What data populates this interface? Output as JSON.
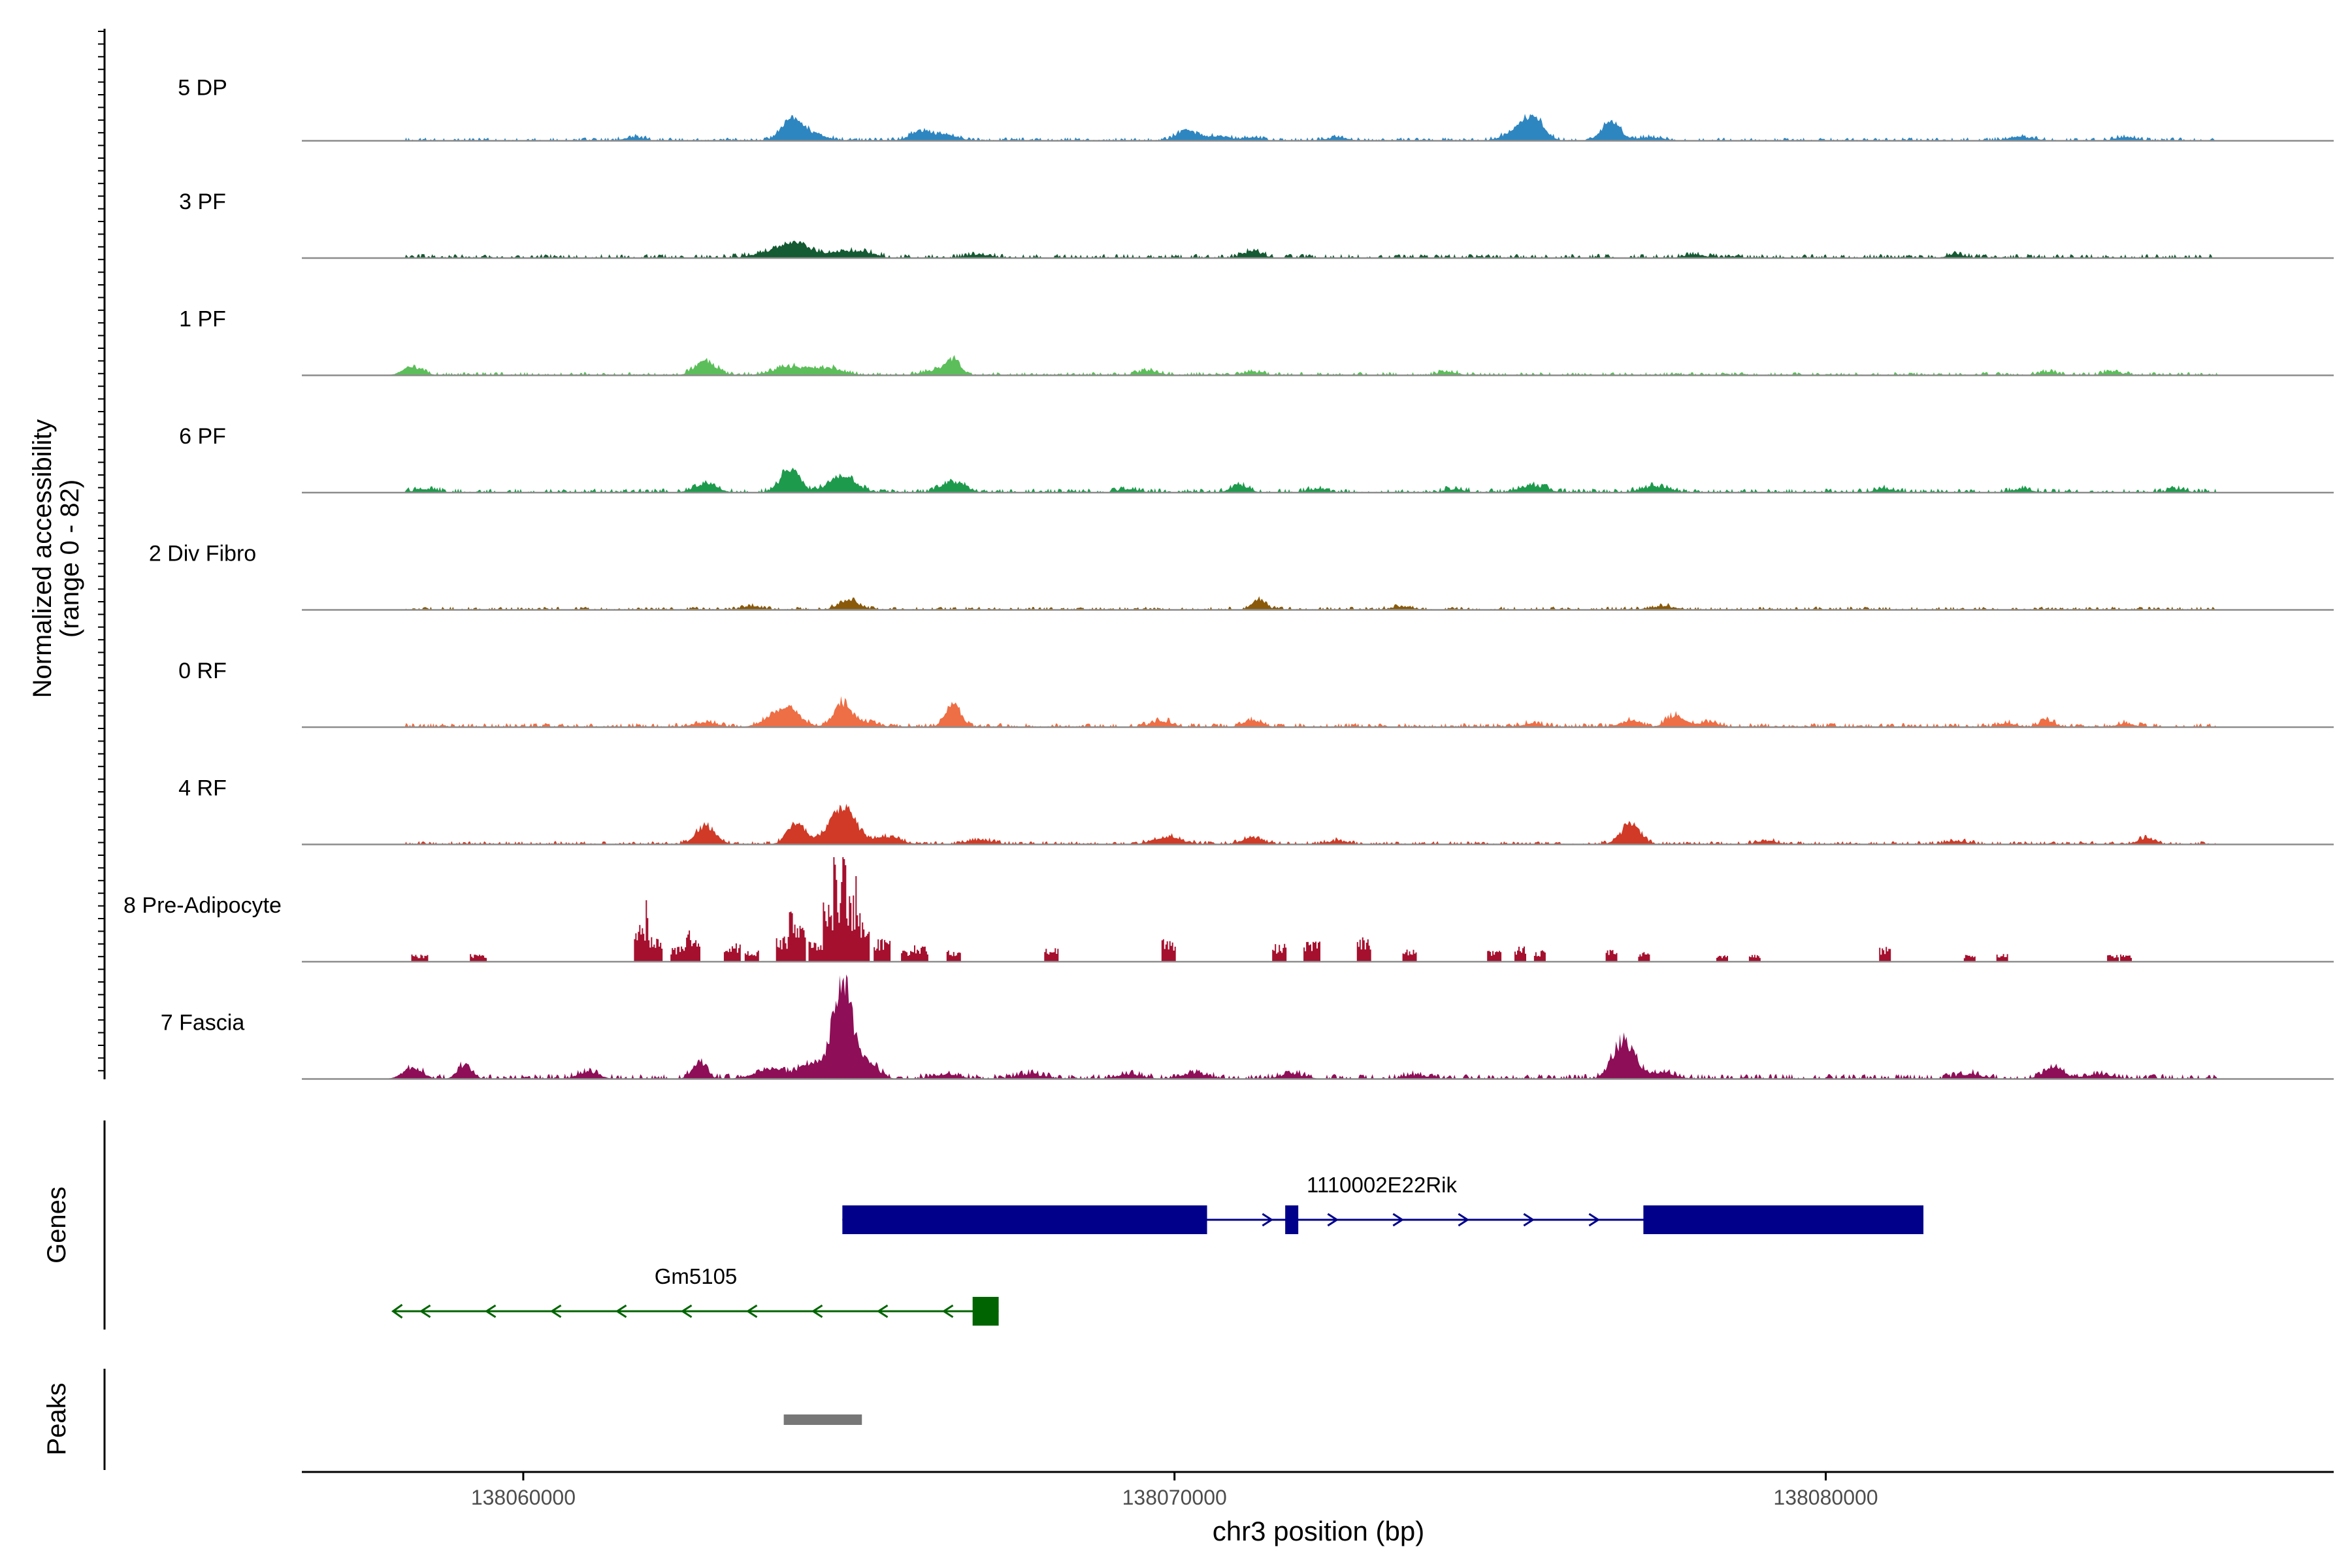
{
  "chart_data": {
    "type": "area",
    "title": "",
    "ylabel_line1": "Normalized accessibility",
    "ylabel_line2": "(range 0 - 82)",
    "y_range": [
      0,
      82
    ],
    "xlabel": "chr3 position (bp)",
    "x_range": [
      138056600,
      138087800
    ],
    "x_ticks": [
      {
        "value": 138060000,
        "label": "138060000"
      },
      {
        "value": 138070000,
        "label": "138070000"
      },
      {
        "value": 138080000,
        "label": "138080000"
      }
    ],
    "tracks": [
      {
        "name": "5 DP",
        "color": "#2E86C1",
        "peaks": [
          [
            138061700,
            3,
            150
          ],
          [
            138064100,
            17,
            140
          ],
          [
            138064400,
            7,
            220
          ],
          [
            138066100,
            8,
            160
          ],
          [
            138066500,
            5,
            180
          ],
          [
            138070200,
            8,
            170
          ],
          [
            138070700,
            4,
            160
          ],
          [
            138071200,
            3,
            140
          ],
          [
            138072500,
            3,
            150
          ],
          [
            138075200,
            6,
            180
          ],
          [
            138075500,
            21,
            160
          ],
          [
            138076700,
            16,
            140
          ],
          [
            138077300,
            3,
            200
          ],
          [
            138083000,
            3,
            200
          ],
          [
            138084600,
            3,
            160
          ]
        ],
        "noise": [
          [
            138058200,
            138086000,
            2
          ]
        ]
      },
      {
        "name": "3 PF",
        "color": "#145A32",
        "peaks": [
          [
            138063800,
            5,
            250
          ],
          [
            138064200,
            11,
            220
          ],
          [
            138064900,
            6,
            200
          ],
          [
            138065300,
            4,
            150
          ],
          [
            138067000,
            3,
            180
          ],
          [
            138071200,
            6,
            140
          ],
          [
            138078000,
            3,
            160
          ],
          [
            138082000,
            3,
            140
          ]
        ],
        "noise": [
          [
            138058200,
            138086000,
            2.5
          ]
        ]
      },
      {
        "name": "1 PF",
        "color": "#5CBE5A",
        "peaks": [
          [
            138058300,
            7,
            150
          ],
          [
            138062800,
            12,
            160
          ],
          [
            138064100,
            7,
            260
          ],
          [
            138064700,
            6,
            220
          ],
          [
            138066300,
            4,
            180
          ],
          [
            138066600,
            13,
            110
          ],
          [
            138069600,
            4,
            160
          ],
          [
            138071200,
            3,
            140
          ],
          [
            138074200,
            3,
            140
          ],
          [
            138083400,
            3,
            140
          ],
          [
            138084400,
            3,
            140
          ]
        ],
        "noise": [
          [
            138058200,
            138086000,
            2
          ]
        ]
      },
      {
        "name": "6 PF",
        "color": "#1E9A4C",
        "peaks": [
          [
            138058500,
            3,
            180
          ],
          [
            138062800,
            7,
            180
          ],
          [
            138064100,
            19,
            150
          ],
          [
            138064900,
            14,
            200
          ],
          [
            138066600,
            9,
            180
          ],
          [
            138069300,
            3,
            160
          ],
          [
            138071000,
            6,
            140
          ],
          [
            138072200,
            3,
            140
          ],
          [
            138074300,
            3,
            140
          ],
          [
            138075500,
            6,
            200
          ],
          [
            138077400,
            5,
            220
          ],
          [
            138080900,
            3,
            160
          ],
          [
            138083000,
            3,
            160
          ],
          [
            138085400,
            3,
            140
          ]
        ],
        "noise": [
          [
            138058200,
            138086000,
            2.5
          ]
        ]
      },
      {
        "name": "2 Div Fibro",
        "color": "#8A5A0A",
        "peaks": [
          [
            138063500,
            3,
            160
          ],
          [
            138065000,
            8,
            160
          ],
          [
            138071300,
            8,
            110
          ],
          [
            138073500,
            3,
            160
          ],
          [
            138077500,
            3,
            200
          ]
        ],
        "noise": [
          [
            138058200,
            138086000,
            2
          ]
        ]
      },
      {
        "name": "0 RF",
        "color": "#EE6E45",
        "peaks": [
          [
            138062800,
            4,
            180
          ],
          [
            138063800,
            6,
            180
          ],
          [
            138064100,
            14,
            170
          ],
          [
            138064900,
            20,
            140
          ],
          [
            138065300,
            4,
            160
          ],
          [
            138066600,
            19,
            120
          ],
          [
            138069800,
            5,
            160
          ],
          [
            138071200,
            6,
            140
          ],
          [
            138075500,
            3,
            160
          ],
          [
            138077000,
            5,
            160
          ],
          [
            138077700,
            10,
            140
          ],
          [
            138078200,
            4,
            160
          ],
          [
            138082800,
            3,
            140
          ],
          [
            138083400,
            5,
            120
          ],
          [
            138084600,
            3,
            140
          ]
        ],
        "noise": [
          [
            138058200,
            138086000,
            2.5
          ]
        ]
      },
      {
        "name": "4 RF",
        "color": "#D03A26",
        "peaks": [
          [
            138062800,
            16,
            150
          ],
          [
            138064200,
            18,
            140
          ],
          [
            138064900,
            32,
            200
          ],
          [
            138065600,
            6,
            200
          ],
          [
            138067000,
            4,
            200
          ],
          [
            138069900,
            6,
            220
          ],
          [
            138071200,
            6,
            160
          ],
          [
            138072500,
            3,
            160
          ],
          [
            138077000,
            16,
            150
          ],
          [
            138079100,
            3,
            160
          ],
          [
            138082000,
            3,
            160
          ],
          [
            138084900,
            5,
            120
          ]
        ],
        "noise": [
          [
            138058200,
            138086000,
            2
          ]
        ]
      },
      {
        "name": "8 Pre-Adipocyte",
        "color": "#A5102E",
        "style": "spiky",
        "peaks": [
          [
            138058400,
            6,
            80
          ],
          [
            138059300,
            6,
            80
          ],
          [
            138061800,
            30,
            70
          ],
          [
            138062000,
            22,
            80
          ],
          [
            138062400,
            12,
            90
          ],
          [
            138062600,
            18,
            70
          ],
          [
            138063200,
            15,
            80
          ],
          [
            138063500,
            9,
            70
          ],
          [
            138064000,
            20,
            80
          ],
          [
            138064200,
            32,
            80
          ],
          [
            138064500,
            18,
            80
          ],
          [
            138064700,
            45,
            70
          ],
          [
            138064850,
            65,
            60
          ],
          [
            138065000,
            52,
            70
          ],
          [
            138065200,
            40,
            70
          ],
          [
            138065500,
            18,
            80
          ],
          [
            138065900,
            9,
            70
          ],
          [
            138066100,
            12,
            70
          ],
          [
            138066600,
            9,
            70
          ],
          [
            138068100,
            12,
            70
          ],
          [
            138069900,
            18,
            70
          ],
          [
            138071600,
            14,
            70
          ],
          [
            138072100,
            16,
            80
          ],
          [
            138072900,
            20,
            70
          ],
          [
            138073600,
            10,
            70
          ],
          [
            138074900,
            10,
            70
          ],
          [
            138075300,
            12,
            60
          ],
          [
            138075600,
            9,
            60
          ],
          [
            138076700,
            10,
            60
          ],
          [
            138077200,
            8,
            60
          ],
          [
            138078400,
            6,
            60
          ],
          [
            138078900,
            6,
            60
          ],
          [
            138080900,
            12,
            60
          ],
          [
            138082200,
            6,
            60
          ],
          [
            138082700,
            6,
            60
          ],
          [
            138084400,
            6,
            60
          ],
          [
            138084600,
            6,
            60
          ]
        ],
        "noise": []
      },
      {
        "name": "7 Fascia",
        "color": "#8E0E57",
        "peaks": [
          [
            138058300,
            9,
            150
          ],
          [
            138059100,
            12,
            110
          ],
          [
            138061000,
            6,
            160
          ],
          [
            138062700,
            14,
            110
          ],
          [
            138063800,
            8,
            250
          ],
          [
            138064400,
            12,
            160
          ],
          [
            138064900,
            82,
            150
          ],
          [
            138065300,
            12,
            160
          ],
          [
            138066500,
            4,
            200
          ],
          [
            138067800,
            4,
            200
          ],
          [
            138069300,
            4,
            200
          ],
          [
            138070300,
            5,
            200
          ],
          [
            138071800,
            4,
            200
          ],
          [
            138073700,
            3,
            200
          ],
          [
            138076900,
            32,
            170
          ],
          [
            138077500,
            5,
            200
          ],
          [
            138082200,
            4,
            200
          ],
          [
            138083500,
            9,
            160
          ],
          [
            138084200,
            4,
            200
          ]
        ],
        "noise": [
          [
            138058200,
            138086000,
            3
          ]
        ]
      }
    ],
    "genes_label": "Genes",
    "genes": [
      {
        "name": "1110002E22Rik",
        "strand": "+",
        "color": "#00008B",
        "row": 1,
        "start": 138064900,
        "end": 138081500,
        "exons": [
          [
            138064900,
            138070500
          ],
          [
            138071700,
            138071900
          ],
          [
            138077200,
            138081500
          ]
        ]
      },
      {
        "name": "Gm5105",
        "strand": "-",
        "color": "#006400",
        "row": 2,
        "start": 138058000,
        "end": 138067300,
        "exons": [
          [
            138066900,
            138067300
          ]
        ]
      }
    ],
    "peaks_label": "Peaks",
    "peak_regions": [
      [
        138064000,
        138065200
      ]
    ],
    "peak_color": "#777777"
  }
}
